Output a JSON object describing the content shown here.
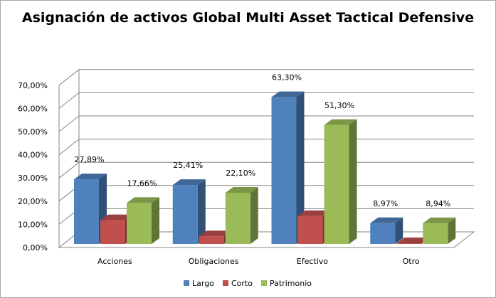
{
  "chart_data": {
    "type": "bar",
    "title": "Asignación de activos Global Multi Asset Tactical Defensive",
    "categories": [
      "Acciones",
      "Obligaciones",
      "Efectivo",
      "Otro"
    ],
    "series": [
      {
        "name": "Largo",
        "values": [
          27.89,
          25.41,
          63.3,
          8.97
        ],
        "data_labels": [
          "27,89%",
          "25,41%",
          "63,30%",
          "8,97%"
        ],
        "color": "#4f81bd"
      },
      {
        "name": "Corto",
        "values": [
          10.23,
          3.31,
          12.0,
          0.03
        ],
        "data_labels": [
          "",
          "",
          "",
          ""
        ],
        "color": "#c0504d"
      },
      {
        "name": "Patrimonio",
        "values": [
          17.66,
          22.1,
          51.3,
          8.94
        ],
        "data_labels": [
          "17,66%",
          "22,10%",
          "51,30%",
          "8,94%"
        ],
        "color": "#9bbb59"
      }
    ],
    "ylim": [
      0,
      70
    ],
    "yticks": [
      "0,00%",
      "10,00%",
      "20,00%",
      "30,00%",
      "40,00%",
      "50,00%",
      "60,00%",
      "70,00%"
    ],
    "grid": true,
    "legend_position": "bottom",
    "style": "3d-clustered-column"
  }
}
